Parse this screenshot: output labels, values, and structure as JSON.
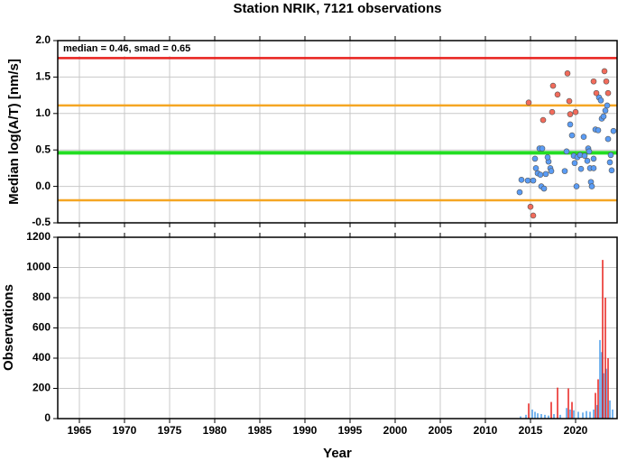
{
  "chart_data": [
    {
      "type": "scatter",
      "title": "Station NRIK, 7121 observations",
      "ylabel": "Median log(A/T) [nm/s]",
      "annotation": "median = 0.46, smad = 0.65",
      "xlim": [
        1962.6,
        2024.6
      ],
      "xticks": [
        1965,
        1970,
        1975,
        1980,
        1985,
        1990,
        1995,
        2000,
        2005,
        2010,
        2015,
        2020
      ],
      "ylim": [
        -0.5,
        2.0
      ],
      "yticks": [
        {
          "value": -0.5,
          "label": "-0.5"
        },
        {
          "value": 0,
          "label": "0.0"
        },
        0.5,
        {
          "value": 1,
          "label": "1.0"
        },
        1.5,
        {
          "value": 2,
          "label": "2.0"
        }
      ],
      "grid": true,
      "hlines": [
        {
          "value": 1.76,
          "color": "#e8201c"
        },
        {
          "value": 1.11,
          "color": "#f5a623"
        },
        {
          "value": 0.46,
          "color": "#22dd22"
        },
        {
          "value": -0.19,
          "color": "#f5a623"
        }
      ],
      "series": [
        {
          "color": "#5a9cf5",
          "x": [
            2013.8,
            2014.0,
            2014.7,
            2015.3,
            2015.5,
            2015.6,
            2015.8,
            2016.0,
            2016.3,
            2016.2,
            2016.5,
            2016.1,
            2016.7,
            2017.0,
            2017.2,
            2017.3,
            2016.9,
            2018.8,
            2019.0,
            2019.4,
            2019.6,
            2019.8,
            2019.9,
            2020.1,
            2020.2,
            2020.5,
            2020.6,
            2020.9,
            2021.0,
            2021.3,
            2021.6,
            2021.7,
            2021.8,
            2021.4,
            2022.0,
            2022.2,
            2022.5,
            2022.6,
            2022.8,
            2022.9,
            2023.1,
            2023.3,
            2023.5,
            2023.6,
            2023.8,
            2024.0,
            2024.2,
            2023.9,
            2022.0,
            2021.5
          ],
          "values": [
            -0.08,
            0.09,
            0.08,
            0.08,
            0.38,
            0.25,
            0.18,
            0.52,
            0.52,
            0.0,
            -0.03,
            0.16,
            0.17,
            0.34,
            0.25,
            0.21,
            0.4,
            0.21,
            0.48,
            0.85,
            0.7,
            0.42,
            0.32,
            0.0,
            0.4,
            0.43,
            0.24,
            0.68,
            0.42,
            0.35,
            0.25,
            0.06,
            0.0,
            0.52,
            0.25,
            0.78,
            0.77,
            1.22,
            1.18,
            0.93,
            0.96,
            1.04,
            1.11,
            0.65,
            0.33,
            0.22,
            0.76,
            0.43,
            0.38,
            0.48
          ]
        },
        {
          "color": "#f26b5b",
          "x": [
            2014.8,
            2015.0,
            2015.3,
            2016.4,
            2017.4,
            2017.5,
            2018.0,
            2019.1,
            2019.3,
            2019.4,
            2020.0,
            2022.0,
            2022.3,
            2023.2,
            2023.4,
            2023.6
          ],
          "values": [
            1.15,
            -0.28,
            -0.4,
            0.91,
            1.02,
            1.38,
            1.26,
            1.55,
            1.17,
            0.99,
            1.02,
            1.44,
            1.28,
            1.58,
            1.44,
            1.28
          ]
        }
      ]
    },
    {
      "type": "bar",
      "ylabel": "Observations",
      "xlabel": "Year",
      "xlim": [
        1962.6,
        2024.6
      ],
      "xticks": [
        1965,
        1970,
        1975,
        1980,
        1985,
        1990,
        1995,
        2000,
        2005,
        2010,
        2015,
        2020
      ],
      "ylim": [
        0,
        1200
      ],
      "yticks": [
        0,
        200,
        400,
        600,
        800,
        1000,
        1200
      ],
      "grid": true,
      "series": [
        {
          "color": "#4a9ce8",
          "x": [
            2013.9,
            2014.5,
            2015.2,
            2015.5,
            2015.8,
            2016.2,
            2016.6,
            2017.0,
            2017.6,
            2018.3,
            2019.0,
            2019.4,
            2019.8,
            2020.3,
            2020.8,
            2021.2,
            2021.6,
            2022.0,
            2022.4,
            2022.7,
            2022.9,
            2023.1,
            2023.4,
            2023.8,
            2024.1
          ],
          "values": [
            15,
            25,
            60,
            45,
            35,
            30,
            25,
            20,
            30,
            25,
            70,
            60,
            55,
            45,
            40,
            50,
            45,
            60,
            90,
            520,
            440,
            300,
            330,
            120,
            60
          ]
        },
        {
          "color": "#e8201c",
          "x": [
            2014.8,
            2017.3,
            2018.0,
            2019.2,
            2019.6,
            2022.2,
            2022.5,
            2023.0,
            2023.3,
            2023.6
          ],
          "values": [
            100,
            110,
            205,
            200,
            110,
            170,
            260,
            1050,
            800,
            400
          ]
        }
      ]
    }
  ]
}
